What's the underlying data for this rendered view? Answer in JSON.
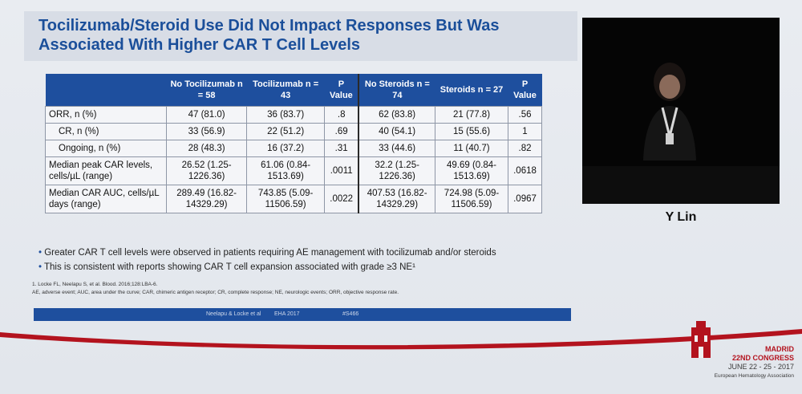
{
  "slide": {
    "title": "Tocilizumab/Steroid Use Did Not Impact Responses But Was Associated With Higher CAR T Cell Levels",
    "headers": [
      "",
      "No Tocilizumab n = 58",
      "Tocilizumab n = 43",
      "P Value",
      "No Steroids n = 74",
      "Steroids n = 27",
      "P Value"
    ],
    "rows": [
      {
        "label": "ORR, n (%)",
        "c1": "47 (81.0)",
        "c2": "36 (83.7)",
        "p1": ".8",
        "c3": "62 (83.8)",
        "c4": "21 (77.8)",
        "p2": ".56"
      },
      {
        "label": "CR, n (%)",
        "c1": "33 (56.9)",
        "c2": "22 (51.2)",
        "p1": ".69",
        "c3": "40 (54.1)",
        "c4": "15 (55.6)",
        "p2": "1"
      },
      {
        "label": "Ongoing, n (%)",
        "c1": "28 (48.3)",
        "c2": "16 (37.2)",
        "p1": ".31",
        "c3": "33 (44.6)",
        "c4": "11 (40.7)",
        "p2": ".82"
      },
      {
        "label": "Median peak CAR levels, cells/µL (range)",
        "c1": "26.52 (1.25-1226.36)",
        "c2": "61.06 (0.84-1513.69)",
        "p1": ".0011",
        "c3": "32.2 (1.25-1226.36)",
        "c4": "49.69 (0.84-1513.69)",
        "p2": ".0618"
      },
      {
        "label": "Median CAR AUC, cells/µL days (range)",
        "c1": "289.49 (16.82-14329.29)",
        "c2": "743.85 (5.09-11506.59)",
        "p1": ".0022",
        "c3": "407.53 (16.82-14329.29)",
        "c4": "724.98 (5.09-11506.59)",
        "p2": ".0967"
      }
    ],
    "bullets": [
      "Greater CAR T cell levels were observed in patients requiring AE management with tocilizumab and/or steroids",
      "This is consistent with reports showing CAR T cell expansion associated with grade ≥3 NE¹"
    ],
    "footnote_ref": "1. Locke FL, Neelapu S, et al. Blood. 2016;128:LBA-6.",
    "footnote_abbr": "AE, adverse event; AUC, area under the curve; CAR, chimeric antigen receptor; CR, complete response; NE, neurologic events; ORR, objective response rate.",
    "footer_authors": "Neelapu & Locke et al",
    "footer_event": "EHA 2017",
    "footer_abstract": "#S466"
  },
  "speaker": {
    "name": "Y Lin"
  },
  "congress": {
    "city": "MADRID",
    "name": "22ND CONGRESS",
    "dates": "JUNE 22 - 25 - 2017",
    "org": "European Hematology Association"
  },
  "colors": {
    "accent": "#1e4f9e",
    "brand_red": "#b3131e"
  }
}
